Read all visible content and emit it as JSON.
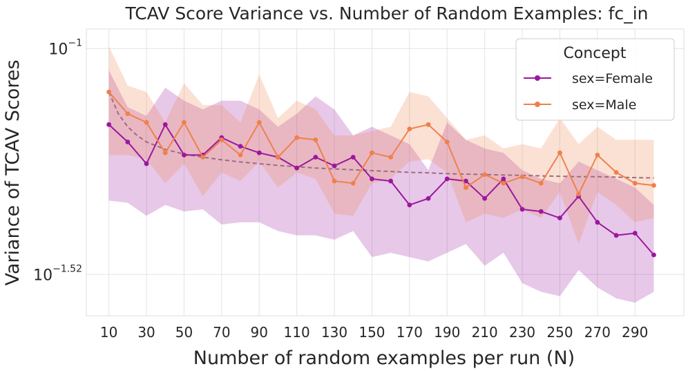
{
  "chart_data": {
    "type": "line",
    "title": "TCAV Score Variance vs. Number of Random Examples: fc_in",
    "xlabel": "Number of random examples per run (N)",
    "ylabel": "Variance of TCAV Scores",
    "yscale": "log",
    "ylim_log10": [
      -1.615,
      -0.955
    ],
    "xlim": [
      -2,
      316
    ],
    "x": [
      10,
      20,
      30,
      40,
      50,
      60,
      70,
      80,
      90,
      100,
      110,
      120,
      130,
      140,
      150,
      160,
      170,
      180,
      190,
      200,
      210,
      220,
      230,
      240,
      250,
      260,
      270,
      280,
      290,
      300
    ],
    "xticks": [
      10,
      30,
      50,
      70,
      90,
      110,
      130,
      150,
      170,
      190,
      210,
      230,
      250,
      270,
      290
    ],
    "xtick_labels": [
      "10",
      "30",
      "50",
      "70",
      "90",
      "110",
      "130",
      "150",
      "170",
      "190",
      "210",
      "230",
      "250",
      "270",
      "290"
    ],
    "yticks": [
      {
        "log10": -1.0,
        "base": "10",
        "exponent": "−1"
      },
      {
        "log10": -1.52,
        "base": "10",
        "exponent": "−1.52"
      }
    ],
    "grid": true,
    "legend": {
      "title": "Concept",
      "position": "top-right"
    },
    "series": [
      {
        "name": "sex=Female",
        "color": "#9c179e",
        "log10": [
          -1.175,
          -1.215,
          -1.265,
          -1.175,
          -1.245,
          -1.245,
          -1.205,
          -1.225,
          -1.24,
          -1.25,
          -1.275,
          -1.25,
          -1.27,
          -1.25,
          -1.3,
          -1.305,
          -1.36,
          -1.345,
          -1.3,
          -1.305,
          -1.345,
          -1.3,
          -1.37,
          -1.375,
          -1.39,
          -1.34,
          -1.4,
          -1.43,
          -1.425,
          -1.475
        ],
        "band_lower_log10": [
          -1.35,
          -1.355,
          -1.385,
          -1.36,
          -1.375,
          -1.37,
          -1.405,
          -1.4,
          -1.4,
          -1.42,
          -1.43,
          -1.43,
          -1.44,
          -1.42,
          -1.48,
          -1.47,
          -1.48,
          -1.49,
          -1.47,
          -1.45,
          -1.5,
          -1.47,
          -1.54,
          -1.56,
          -1.57,
          -1.51,
          -1.55,
          -1.575,
          -1.585,
          -1.56
        ],
        "band_upper_log10": [
          -1.05,
          -1.135,
          -1.155,
          -1.09,
          -1.12,
          -1.14,
          -1.12,
          -1.12,
          -1.14,
          -1.18,
          -1.15,
          -1.11,
          -1.14,
          -1.2,
          -1.18,
          -1.2,
          -1.22,
          -1.28,
          -1.17,
          -1.21,
          -1.23,
          -1.24,
          -1.28,
          -1.3,
          -1.31,
          -1.26,
          -1.28,
          -1.3,
          -1.32,
          -1.36
        ]
      },
      {
        "name": "sex=Male",
        "color": "#f0804b",
        "log10": [
          -1.1,
          -1.15,
          -1.17,
          -1.24,
          -1.17,
          -1.25,
          -1.21,
          -1.245,
          -1.17,
          -1.25,
          -1.205,
          -1.21,
          -1.305,
          -1.31,
          -1.24,
          -1.25,
          -1.185,
          -1.175,
          -1.215,
          -1.32,
          -1.29,
          -1.31,
          -1.295,
          -1.31,
          -1.24,
          -1.335,
          -1.245,
          -1.285,
          -1.31,
          -1.315
        ],
        "band_lower_log10": [
          -1.245,
          -1.245,
          -1.255,
          -1.31,
          -1.265,
          -1.34,
          -1.285,
          -1.305,
          -1.26,
          -1.32,
          -1.285,
          -1.3,
          -1.38,
          -1.385,
          -1.31,
          -1.3,
          -1.26,
          -1.255,
          -1.285,
          -1.4,
          -1.38,
          -1.39,
          -1.37,
          -1.39,
          -1.33,
          -1.45,
          -1.33,
          -1.36,
          -1.4,
          -1.39
        ],
        "band_upper_log10": [
          -0.995,
          -1.085,
          -1.1,
          -1.17,
          -1.08,
          -1.13,
          -1.13,
          -1.17,
          -1.06,
          -1.16,
          -1.12,
          -1.14,
          -1.2,
          -1.2,
          -1.19,
          -1.18,
          -1.1,
          -1.11,
          -1.16,
          -1.21,
          -1.2,
          -1.23,
          -1.22,
          -1.23,
          -1.16,
          -1.22,
          -1.18,
          -1.21,
          -1.21,
          -1.21
        ]
      }
    ],
    "trend": {
      "style": "dashed",
      "color": "#9a6e7e",
      "x": [
        10,
        15,
        20,
        25,
        30,
        40,
        50,
        60,
        70,
        80,
        90,
        100,
        110,
        120,
        130,
        140,
        150,
        160,
        170,
        180,
        190,
        200,
        210,
        220,
        230,
        240,
        250,
        260,
        270,
        280,
        290,
        300
      ],
      "log10": [
        -1.1,
        -1.15,
        -1.18,
        -1.2,
        -1.215,
        -1.232,
        -1.243,
        -1.25,
        -1.256,
        -1.261,
        -1.265,
        -1.269,
        -1.272,
        -1.275,
        -1.277,
        -1.279,
        -1.281,
        -1.283,
        -1.285,
        -1.286,
        -1.288,
        -1.289,
        -1.29,
        -1.291,
        -1.292,
        -1.293,
        -1.294,
        -1.295,
        -1.295,
        -1.296,
        -1.297,
        -1.298
      ]
    }
  }
}
